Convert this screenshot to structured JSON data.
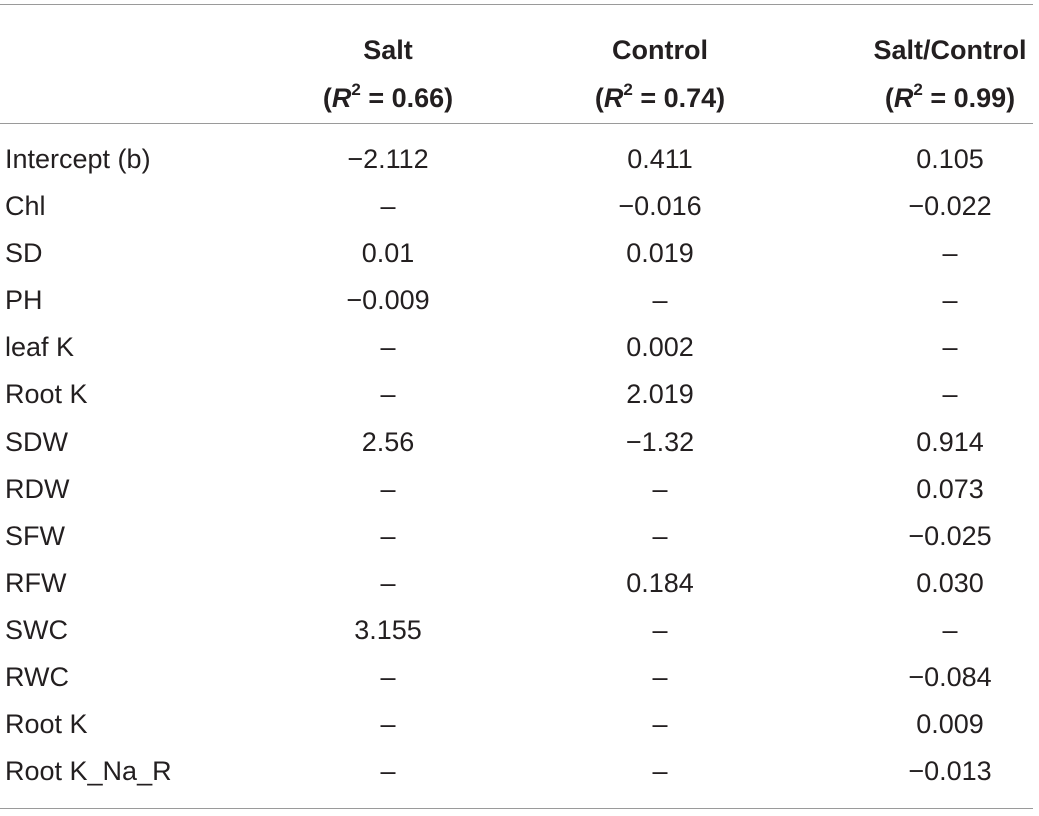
{
  "table": {
    "columns": [
      {
        "name": "Salt",
        "r2": "0.66"
      },
      {
        "name": "Control",
        "r2": "0.74"
      },
      {
        "name": "Salt/Control",
        "r2": "0.99"
      }
    ],
    "r2_symbol": "R",
    "r2_exponent": "2",
    "rows": [
      {
        "label": "Intercept (b)",
        "salt": "−2.112",
        "control": "0.411",
        "ratio": "0.105"
      },
      {
        "label": "Chl",
        "salt": "–",
        "control": "−0.016",
        "ratio": "−0.022"
      },
      {
        "label": "SD",
        "salt": "0.01",
        "control": "0.019",
        "ratio": "–"
      },
      {
        "label": "PH",
        "salt": "−0.009",
        "control": "–",
        "ratio": "–"
      },
      {
        "label": "leaf K",
        "salt": "–",
        "control": "0.002",
        "ratio": "–"
      },
      {
        "label": "Root K",
        "salt": "–",
        "control": "2.019",
        "ratio": "–"
      },
      {
        "label": "SDW",
        "salt": "2.56",
        "control": "−1.32",
        "ratio": "0.914"
      },
      {
        "label": "RDW",
        "salt": "–",
        "control": "–",
        "ratio": "0.073"
      },
      {
        "label": "SFW",
        "salt": "–",
        "control": "–",
        "ratio": "−0.025"
      },
      {
        "label": "RFW",
        "salt": "–",
        "control": "0.184",
        "ratio": "0.030"
      },
      {
        "label": "SWC",
        "salt": "3.155",
        "control": "–",
        "ratio": "–"
      },
      {
        "label": "RWC",
        "salt": "–",
        "control": "–",
        "ratio": "−0.084"
      },
      {
        "label": "Root K",
        "salt": "–",
        "control": "–",
        "ratio": "0.009"
      },
      {
        "label": "Root K_Na_R",
        "salt": "–",
        "control": "–",
        "ratio": "−0.013"
      }
    ]
  }
}
